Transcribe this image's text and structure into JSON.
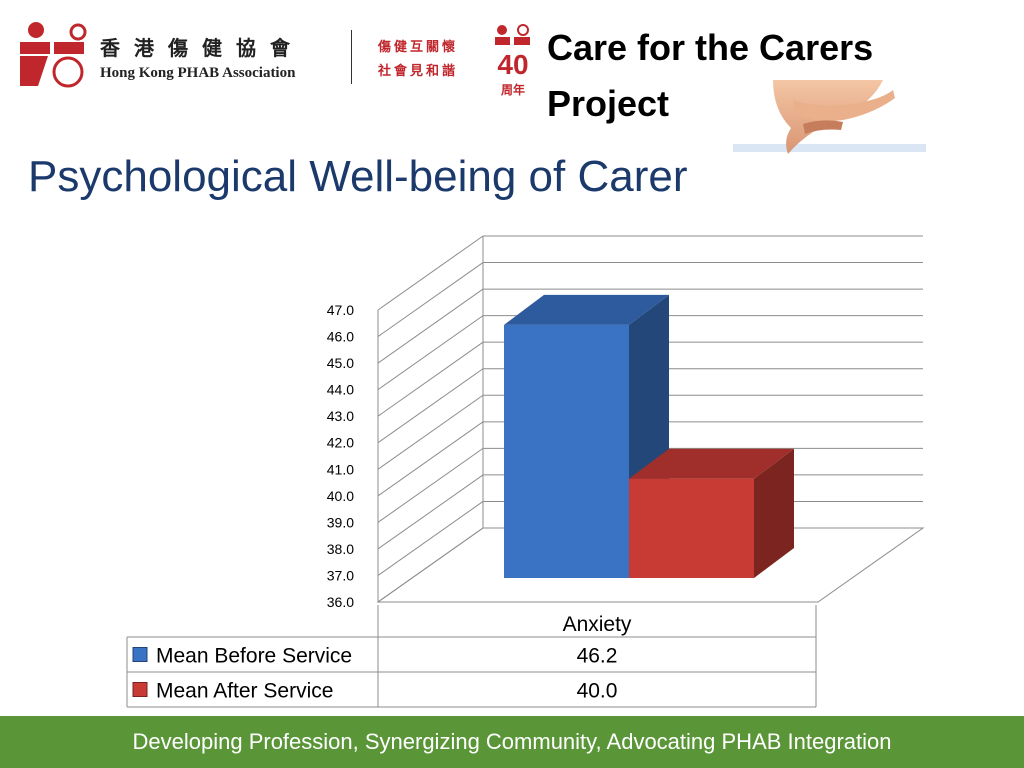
{
  "header": {
    "org_name_zh": "香港傷健協會",
    "org_name_en": "Hong Kong PHAB Association",
    "slogan_line1": "傷健互關懷",
    "slogan_line2": "社會見和諧",
    "anniversary_number": "40",
    "anniversary_label": "周年",
    "project_title": "Care for the Carers Project"
  },
  "slide_title": "Psychological Well-being of Carer",
  "footer_text": "Developing Profession, Synergizing Community, Advocating PHAB Integration",
  "chart_data": {
    "type": "bar",
    "categories": [
      "Anxiety"
    ],
    "series": [
      {
        "name": "Mean Before Service",
        "values": [
          46.2
        ],
        "value_labels": [
          "46.2"
        ],
        "color": "#3a72c4"
      },
      {
        "name": "Mean After Service",
        "values": [
          40.0
        ],
        "value_labels": [
          "40.0"
        ],
        "color": "#c83a34"
      }
    ],
    "ylim": [
      36.0,
      47.0
    ],
    "yticks": [
      "47.0",
      "46.0",
      "45.0",
      "44.0",
      "43.0",
      "42.0",
      "41.0",
      "40.0",
      "39.0",
      "38.0",
      "37.0",
      "36.0"
    ],
    "grid": true,
    "style": "3d",
    "data_table": true
  }
}
